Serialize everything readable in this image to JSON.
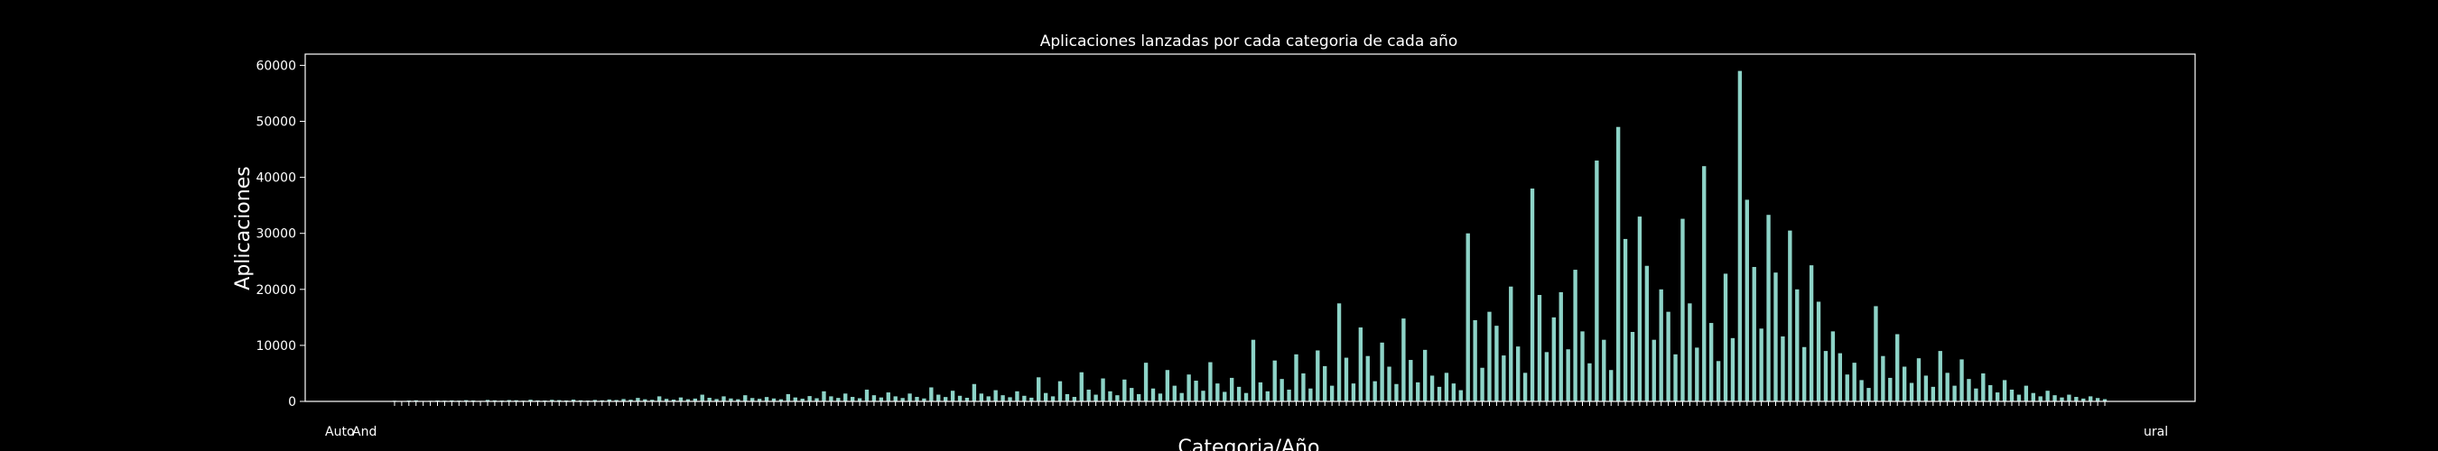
{
  "colors": {
    "background": "#000000",
    "bar": "#8dd3c7",
    "axis": "#ffffff",
    "text": "#ffffff"
  },
  "chart_data": {
    "type": "bar",
    "title": "Aplicaciones lanzadas por cada categoria de cada año",
    "xlabel": "Categoria/Año",
    "ylabel": "Aplicaciones",
    "ylim": [
      0,
      62000
    ],
    "yticks": [
      0,
      10000,
      20000,
      30000,
      40000,
      50000,
      60000
    ],
    "ytick_labels": [
      "0",
      "10000",
      "20000",
      "30000",
      "40000",
      "50000",
      "60000"
    ],
    "grid": false,
    "legend": "none",
    "x_tick_labels_left": [
      "Auto",
      "And"
    ],
    "x_tick_labels_right": [
      "ural"
    ],
    "values": [
      120,
      80,
      150,
      200,
      90,
      110,
      160,
      130,
      180,
      140,
      220,
      170,
      100,
      260,
      190,
      150,
      240,
      210,
      130,
      300,
      180,
      160,
      280,
      230,
      170,
      320,
      200,
      150,
      260,
      190,
      340,
      250,
      420,
      300,
      620,
      380,
      280,
      900,
      450,
      320,
      700,
      380,
      500,
      1200,
      640,
      420,
      900,
      520,
      380,
      1100,
      600,
      460,
      780,
      520,
      380,
      1300,
      700,
      480,
      950,
      560,
      1800,
      900,
      620,
      1400,
      800,
      560,
      2100,
      1100,
      700,
      1600,
      900,
      600,
      1400,
      800,
      520,
      2500,
      1200,
      780,
      1900,
      1000,
      640,
      3100,
      1400,
      900,
      2000,
      1100,
      740,
      1800,
      1000,
      660,
      4300,
      1500,
      900,
      3600,
      1300,
      800,
      5200,
      2100,
      1200,
      4100,
      1800,
      1100,
      3900,
      2400,
      1300,
      6900,
      2300,
      1400,
      5600,
      2800,
      1500,
      4800,
      3700,
      1900,
      7000,
      3200,
      1700,
      4200,
      2600,
      1500,
      11000,
      3400,
      1800,
      7300,
      4000,
      2100,
      8400,
      5000,
      2300,
      9100,
      6300,
      2800,
      17500,
      7800,
      3200,
      13200,
      8100,
      3600,
      10500,
      6200,
      3100,
      14800,
      7400,
      3400,
      9200,
      4600,
      2600,
      5100,
      3200,
      2000,
      30000,
      14500,
      6000,
      16000,
      13500,
      8200,
      20500,
      9800,
      5100,
      38000,
      19000,
      8800,
      15000,
      19500,
      9300,
      23500,
      12500,
      6800,
      43000,
      11000,
      5600,
      49000,
      29000,
      12400,
      33000,
      24200,
      11000,
      20000,
      16000,
      8400,
      32600,
      17500,
      9600,
      42000,
      14000,
      7200,
      22800,
      11300,
      59000,
      36000,
      24000,
      13000,
      33300,
      23000,
      11600,
      30500,
      20000,
      9700,
      24300,
      17800,
      9000,
      12500,
      8600,
      4800,
      6900,
      3800,
      2400,
      17000,
      8100,
      4200,
      12000,
      6200,
      3300,
      7700,
      4600,
      2600,
      9000,
      5100,
      2800,
      7500,
      4000,
      2300,
      5000,
      2900,
      1600,
      3800,
      2100,
      1200,
      2800,
      1500,
      900,
      1900,
      1100,
      700,
      1200,
      800,
      500,
      900,
      600,
      400
    ]
  }
}
